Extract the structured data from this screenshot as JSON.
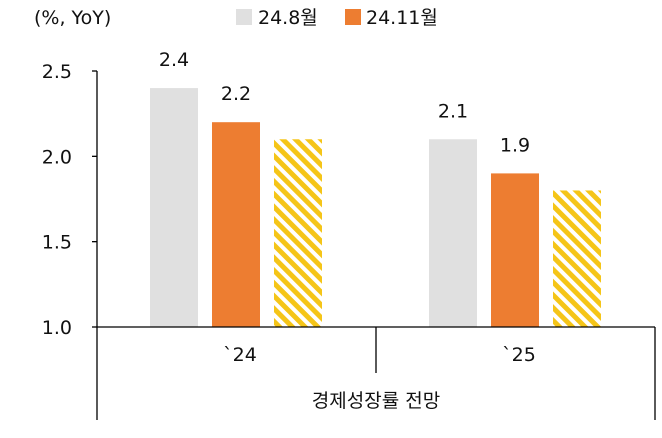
{
  "chart_data": {
    "type": "bar",
    "unit_label": "(%, YoY)",
    "categories": [
      "`24",
      "`25"
    ],
    "group_label": "경제성장률 전망",
    "series": [
      {
        "name": "24.8월",
        "values": [
          2.4,
          2.1
        ],
        "color": "#e0e0e0",
        "pattern": "solid",
        "show_labels": true
      },
      {
        "name": "24.11월",
        "values": [
          2.2,
          1.9
        ],
        "color": "#ed7d31",
        "pattern": "solid",
        "show_labels": true
      },
      {
        "values": [
          2.1,
          1.8
        ],
        "color": "#f5c518",
        "pattern": "diagonal-stripes",
        "show_labels": false
      }
    ],
    "ylim": [
      1.0,
      2.5
    ],
    "yticks": [
      "1.0",
      "1.5",
      "2.0",
      "2.5"
    ],
    "grid": false,
    "legend": "top"
  }
}
